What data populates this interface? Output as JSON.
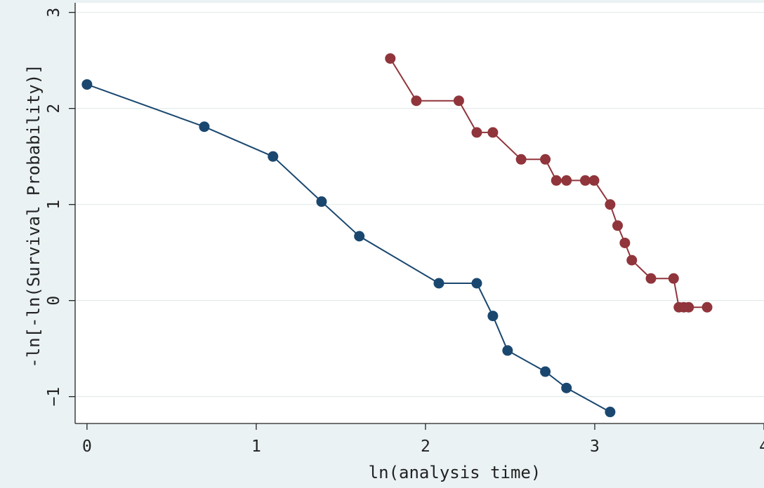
{
  "chart_data": {
    "type": "line",
    "xlabel": "ln(analysis time)",
    "ylabel": "-ln[-ln(Survival Probability)]",
    "xlim": [
      -0.07,
      4.0
    ],
    "ylim": [
      -1.28,
      3.1
    ],
    "xticks": [
      "0",
      "1",
      "2",
      "3",
      "4"
    ],
    "yticks": [
      "-1",
      "0",
      "1",
      "2",
      "3"
    ],
    "grid": true,
    "colors": {
      "plot_bg": "#ffffff",
      "page_bg": "#eaf2f3",
      "grid": "#e3eaeb",
      "series_blue": "#1a476f",
      "series_red": "#90353b"
    },
    "series": [
      {
        "color": "#1a476f",
        "x": [
          0,
          0.693,
          1.099,
          1.386,
          1.609,
          2.079,
          2.303,
          2.398,
          2.485,
          2.708,
          2.833,
          3.091
        ],
        "y": [
          2.25,
          1.81,
          1.5,
          1.03,
          0.67,
          0.18,
          0.18,
          -0.16,
          -0.52,
          -0.74,
          -0.91,
          -1.16
        ]
      },
      {
        "color": "#90353b",
        "x": [
          1.792,
          1.946,
          2.197,
          2.303,
          2.398,
          2.565,
          2.708,
          2.773,
          2.833,
          2.944,
          2.996,
          3.091,
          3.135,
          3.178,
          3.219,
          3.332,
          3.466,
          3.497,
          3.526,
          3.555,
          3.664
        ],
        "y": [
          2.52,
          2.08,
          2.08,
          1.75,
          1.75,
          1.47,
          1.47,
          1.25,
          1.25,
          1.25,
          1.25,
          1.0,
          0.78,
          0.6,
          0.42,
          0.23,
          0.23,
          -0.07,
          -0.07,
          -0.07,
          -0.07
        ]
      }
    ]
  }
}
